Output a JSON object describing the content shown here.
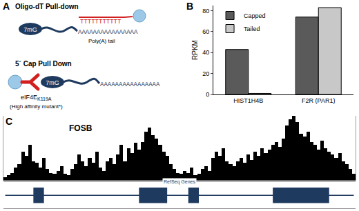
{
  "diagram": {
    "panel_label": "A",
    "oligo_dt": {
      "title": "Oligo-dT Pull-down",
      "cap": "7mG",
      "oligo": "TTTTTTTTTTT",
      "tail": "AAAAAAAAAAAAAAAA",
      "tail_label": "Poly(A) tail"
    },
    "cap_pulldown": {
      "title": "5´ Cap Pull Down",
      "cap": "7mG",
      "tail": "AAAAAAAAAAAAAAAA",
      "protein": "eIF4E",
      "protein_sub": "K119A",
      "protein_note": "(High affinity mutant*)"
    }
  },
  "chart_data": [
    {
      "panel_label": "B",
      "type": "bar",
      "categories": [
        "HIST1H4B",
        "F2R (PAR1)"
      ],
      "series": [
        {
          "name": "Capped",
          "color": "#5a5a5a",
          "values": [
            43,
            74
          ]
        },
        {
          "name": "Tailed",
          "color": "#c8c8c8",
          "values": [
            1,
            83
          ]
        }
      ],
      "y_label": "RPKM",
      "ylim": [
        0,
        85
      ],
      "yticks": [
        0,
        20,
        40,
        60,
        80
      ],
      "legend": "top left"
    },
    {
      "panel_label": "C",
      "type": "bar",
      "title": "FOSB",
      "color": "#000000",
      "tick_labels": false,
      "x": [
        0,
        1,
        2,
        3,
        4,
        5,
        6,
        7,
        8,
        9,
        10,
        11,
        12,
        13,
        14,
        15,
        16,
        17,
        18,
        19,
        20,
        21,
        22,
        23,
        24,
        25,
        26,
        27,
        28,
        29,
        30,
        31,
        32,
        33,
        34,
        35,
        36,
        37,
        38,
        39,
        40,
        41,
        42,
        43,
        44,
        45,
        46,
        47,
        48,
        49,
        50,
        51,
        52,
        53,
        54,
        55,
        56,
        57,
        58,
        59,
        60,
        61,
        62,
        63,
        64,
        65,
        66,
        67,
        68,
        69,
        70,
        71,
        72,
        73,
        74,
        75,
        76,
        77,
        78,
        79,
        80,
        81,
        82,
        83,
        84,
        85,
        86,
        87,
        88,
        89,
        90,
        91,
        92,
        93,
        94,
        95,
        96,
        97,
        98,
        99
      ],
      "values": [
        5,
        8,
        12,
        20,
        25,
        45,
        38,
        55,
        30,
        28,
        20,
        35,
        18,
        12,
        10,
        15,
        22,
        10,
        8,
        18,
        25,
        40,
        30,
        22,
        35,
        28,
        45,
        20,
        15,
        30,
        35,
        25,
        40,
        55,
        30,
        50,
        42,
        58,
        48,
        60,
        75,
        82,
        70,
        65,
        55,
        45,
        38,
        25,
        18,
        12,
        10,
        15,
        12,
        20,
        8,
        10,
        18,
        22,
        15,
        35,
        45,
        38,
        50,
        30,
        25,
        22,
        30,
        35,
        28,
        40,
        32,
        45,
        38,
        50,
        42,
        48,
        55,
        60,
        52,
        65,
        85,
        95,
        100,
        90,
        72,
        68,
        75,
        60,
        55,
        48,
        62,
        50,
        45,
        40,
        35,
        42,
        30,
        25,
        18,
        10
      ],
      "xlim": [
        -0.5,
        99.5
      ],
      "ylim": [
        0,
        100
      ],
      "genes": {
        "label": "RefSeq Genes",
        "span": [
          0,
          99
        ],
        "exons": [
          [
            8,
            11
          ],
          [
            38,
            46
          ],
          [
            52,
            55
          ],
          [
            76,
            92
          ]
        ]
      }
    }
  ]
}
